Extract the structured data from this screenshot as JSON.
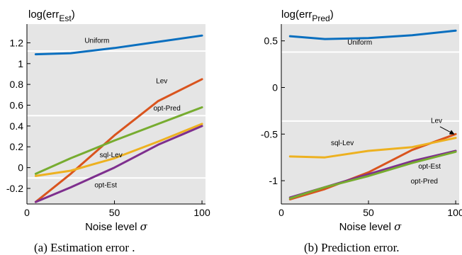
{
  "colors": {
    "Uniform": "#0a6fbf",
    "Lev": "#d9541e",
    "opt-Pred": "#77ac30",
    "sql-Lev": "#edb120",
    "opt-Est": "#7e2f8e",
    "plot_bg": "#e5e5e5",
    "grid": "#ffffff"
  },
  "chart_data": [
    {
      "type": "line",
      "ylabel": {
        "base": "log(err",
        "sub": "Est",
        "close": ")"
      },
      "xlabel": {
        "text": "Noise level ",
        "symbol": "σ"
      },
      "caption": "(a) Estimation error .",
      "xlim": [
        0,
        102
      ],
      "ylim": [
        -0.35,
        1.38
      ],
      "xticks": [
        0,
        50,
        100
      ],
      "yticks": [
        -0.2,
        0,
        0.2,
        0.4,
        0.6,
        0.8,
        1,
        1.2
      ],
      "ytick_labels": [
        "-0.2",
        "0",
        "0.2",
        "0.4",
        "0.6",
        "0.8",
        "1",
        "1.2"
      ],
      "grid_y": [
        -0.1,
        0.5,
        1.12
      ],
      "x": [
        5,
        25,
        50,
        75,
        100
      ],
      "series": [
        {
          "name": "Uniform",
          "values": [
            1.09,
            1.1,
            1.15,
            1.21,
            1.27
          ]
        },
        {
          "name": "Lev",
          "values": [
            -0.33,
            -0.06,
            0.31,
            0.64,
            0.85
          ]
        },
        {
          "name": "opt-Pred",
          "values": [
            -0.06,
            0.09,
            0.26,
            0.42,
            0.58
          ]
        },
        {
          "name": "sql-Lev",
          "values": [
            -0.08,
            -0.03,
            0.09,
            0.25,
            0.42
          ]
        },
        {
          "name": "opt-Est",
          "values": [
            -0.33,
            -0.19,
            0.0,
            0.22,
            0.4
          ]
        }
      ],
      "labels": [
        {
          "series": "Uniform",
          "x": 40,
          "y": 1.2
        },
        {
          "series": "Lev",
          "x": 77,
          "y": 0.81
        },
        {
          "series": "opt-Pred",
          "x": 80,
          "y": 0.55
        },
        {
          "series": "sql-Lev",
          "x": 48,
          "y": 0.1
        },
        {
          "series": "opt-Est",
          "x": 45,
          "y": -0.19
        }
      ]
    },
    {
      "type": "line",
      "ylabel": {
        "base": "log(err",
        "sub": "Pred",
        "close": ")"
      },
      "xlabel": {
        "text": "Noise level ",
        "symbol": "σ"
      },
      "caption": "(b) Prediction error.",
      "xlim": [
        0,
        102
      ],
      "ylim": [
        -1.25,
        0.68
      ],
      "xticks": [
        0,
        50,
        100
      ],
      "yticks": [
        -1,
        -0.5,
        0,
        0.5
      ],
      "ytick_labels": [
        "-1",
        "-0.5",
        "0",
        "0.5"
      ],
      "grid_y": [
        0.38,
        -0.36
      ],
      "x": [
        5,
        25,
        50,
        75,
        100
      ],
      "series": [
        {
          "name": "Uniform",
          "values": [
            0.55,
            0.52,
            0.53,
            0.56,
            0.61
          ]
        },
        {
          "name": "Lev",
          "values": [
            -1.2,
            -1.09,
            -0.91,
            -0.67,
            -0.5
          ]
        },
        {
          "name": "sql-Lev",
          "values": [
            -0.74,
            -0.75,
            -0.68,
            -0.64,
            -0.54
          ]
        },
        {
          "name": "opt-Est",
          "values": [
            -1.18,
            -1.07,
            -0.93,
            -0.79,
            -0.68
          ]
        },
        {
          "name": "opt-Pred",
          "values": [
            -1.19,
            -1.07,
            -0.95,
            -0.81,
            -0.69
          ]
        }
      ],
      "labels": [
        {
          "series": "Uniform",
          "x": 45,
          "y": 0.46
        },
        {
          "series": "Lev",
          "x": 89,
          "y": -0.38
        },
        {
          "series": "sql-Lev",
          "x": 35,
          "y": -0.62
        },
        {
          "series": "opt-Est",
          "x": 85,
          "y": -0.87
        },
        {
          "series": "opt-Pred",
          "x": 82,
          "y": -1.03
        }
      ],
      "arrow": {
        "from": [
          91,
          -0.42
        ],
        "to": [
          99,
          -0.5
        ]
      }
    }
  ]
}
